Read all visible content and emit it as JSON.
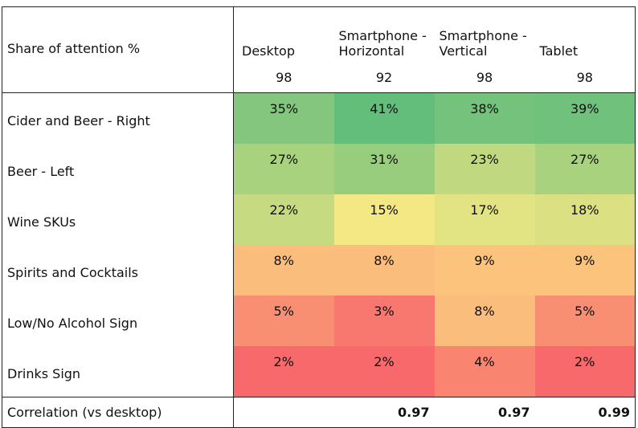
{
  "header": {
    "title": "Share of attention %",
    "columns": [
      {
        "label": "Desktop",
        "n": 98
      },
      {
        "label": "Smartphone - Horizontal",
        "n": 92
      },
      {
        "label": "Smartphone - Vertical",
        "n": 98
      },
      {
        "label": "Tablet",
        "n": 98
      }
    ]
  },
  "table": {
    "rows": [
      {
        "label": "Cider and Beer - Right",
        "cells": [
          "35%",
          "41%",
          "38%",
          "39%"
        ],
        "colors": [
          "#84c67d",
          "#63be7b",
          "#74c27c",
          "#70c17b"
        ]
      },
      {
        "label": "Beer - Left",
        "cells": [
          "27%",
          "31%",
          "23%",
          "27%"
        ],
        "colors": [
          "#a9d27f",
          "#98cd7e",
          "#c0d980",
          "#a9d27f"
        ]
      },
      {
        "label": "Wine SKUs",
        "cells": [
          "22%",
          "15%",
          "17%",
          "18%"
        ],
        "colors": [
          "#c6db81",
          "#f3e884",
          "#e2e383",
          "#dbe182"
        ]
      },
      {
        "label": "Spirits and Cocktails",
        "cells": [
          "8%",
          "8%",
          "9%",
          "9%"
        ],
        "colors": [
          "#fbbd7b",
          "#fbbd7b",
          "#fcc37c",
          "#fcc37c"
        ]
      },
      {
        "label": "Low/No Alcohol Sign",
        "cells": [
          "5%",
          "3%",
          "8%",
          "5%"
        ],
        "colors": [
          "#f98f72",
          "#f8776e",
          "#fbbd7b",
          "#f98f72"
        ]
      },
      {
        "label": "Drinks Sign",
        "cells": [
          "2%",
          "2%",
          "4%",
          "2%"
        ],
        "colors": [
          "#f8696b",
          "#f8696b",
          "#f98570",
          "#f8696b"
        ]
      }
    ]
  },
  "footer": {
    "label": "Correlation (vs desktop)",
    "cells": [
      null,
      0.97,
      0.97,
      0.99
    ]
  }
}
